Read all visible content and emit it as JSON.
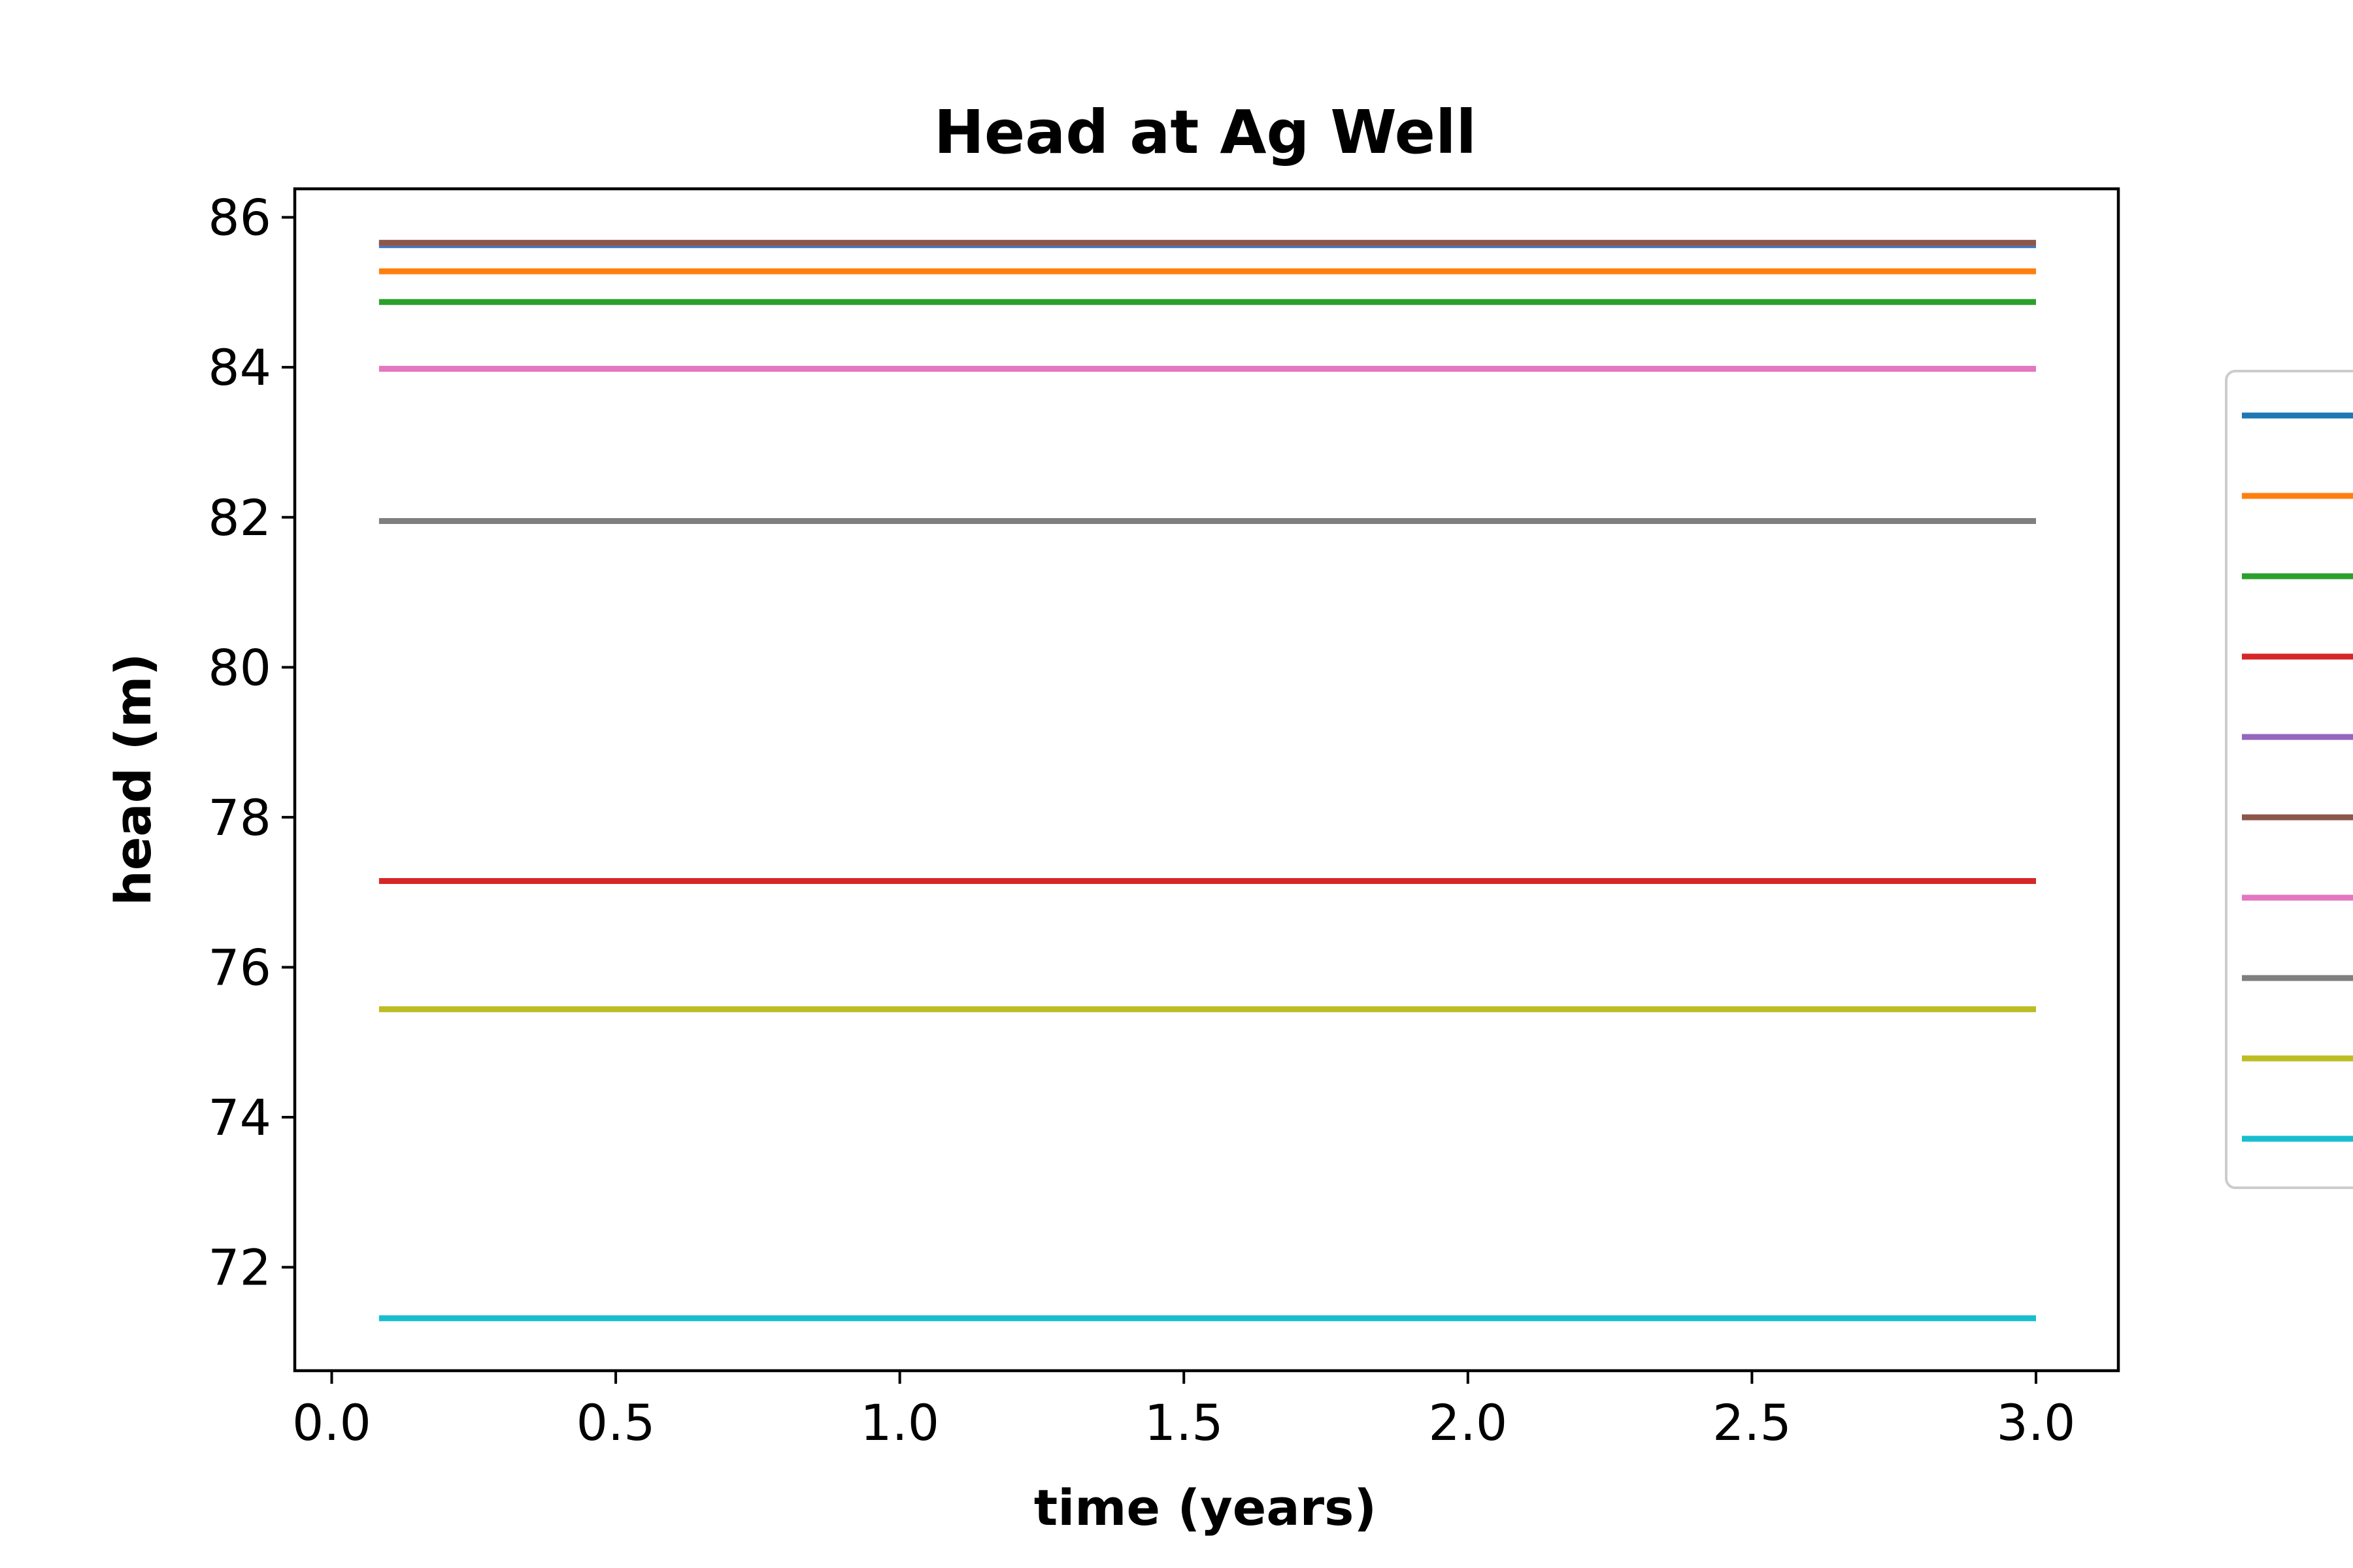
{
  "chart_data": {
    "type": "line",
    "title": "Head at Ag Well",
    "xlabel": "time (years)",
    "ylabel": "head (m)",
    "xlim": [
      -0.065,
      3.145
    ],
    "ylim": [
      70.62,
      86.38
    ],
    "x_ticks": [
      0.0,
      0.5,
      1.0,
      1.5,
      2.0,
      2.5,
      3.0
    ],
    "x_tick_labels": [
      "0.0",
      "0.5",
      "1.0",
      "1.5",
      "2.0",
      "2.5",
      "3.0"
    ],
    "y_ticks": [
      72,
      74,
      76,
      78,
      80,
      82,
      84,
      86
    ],
    "y_tick_labels": [
      "72",
      "74",
      "76",
      "78",
      "80",
      "82",
      "84",
      "86"
    ],
    "grid": false,
    "legend": {
      "placement": "right, outside plot (clipped)",
      "visible_text": false
    },
    "series": [
      {
        "color": "#1f77b4",
        "x": [
          0.0833,
          3.0
        ],
        "y": [
          85.63,
          85.63
        ]
      },
      {
        "color": "#ff7f0e",
        "x": [
          0.0833,
          3.0
        ],
        "y": [
          85.28,
          85.28
        ]
      },
      {
        "color": "#2ca02c",
        "x": [
          0.0833,
          3.0
        ],
        "y": [
          84.87,
          84.87
        ]
      },
      {
        "color": "#d62728",
        "x": [
          0.0833,
          3.0
        ],
        "y": [
          77.15,
          77.15
        ]
      },
      {
        "color": "#9467bd",
        "x": [
          0.0833,
          3.0
        ],
        "y": [
          85.65,
          85.65
        ]
      },
      {
        "color": "#8c564b",
        "x": [
          0.0833,
          3.0
        ],
        "y": [
          85.66,
          85.66
        ]
      },
      {
        "color": "#e377c2",
        "x": [
          0.0833,
          3.0
        ],
        "y": [
          83.98,
          83.98
        ]
      },
      {
        "color": "#7f7f7f",
        "x": [
          0.0833,
          3.0
        ],
        "y": [
          81.95,
          81.95
        ]
      },
      {
        "color": "#bcbd22",
        "x": [
          0.0833,
          3.0
        ],
        "y": [
          75.44,
          75.44
        ]
      },
      {
        "color": "#17becf",
        "x": [
          0.0833,
          3.0
        ],
        "y": [
          71.32,
          71.32
        ]
      }
    ]
  }
}
